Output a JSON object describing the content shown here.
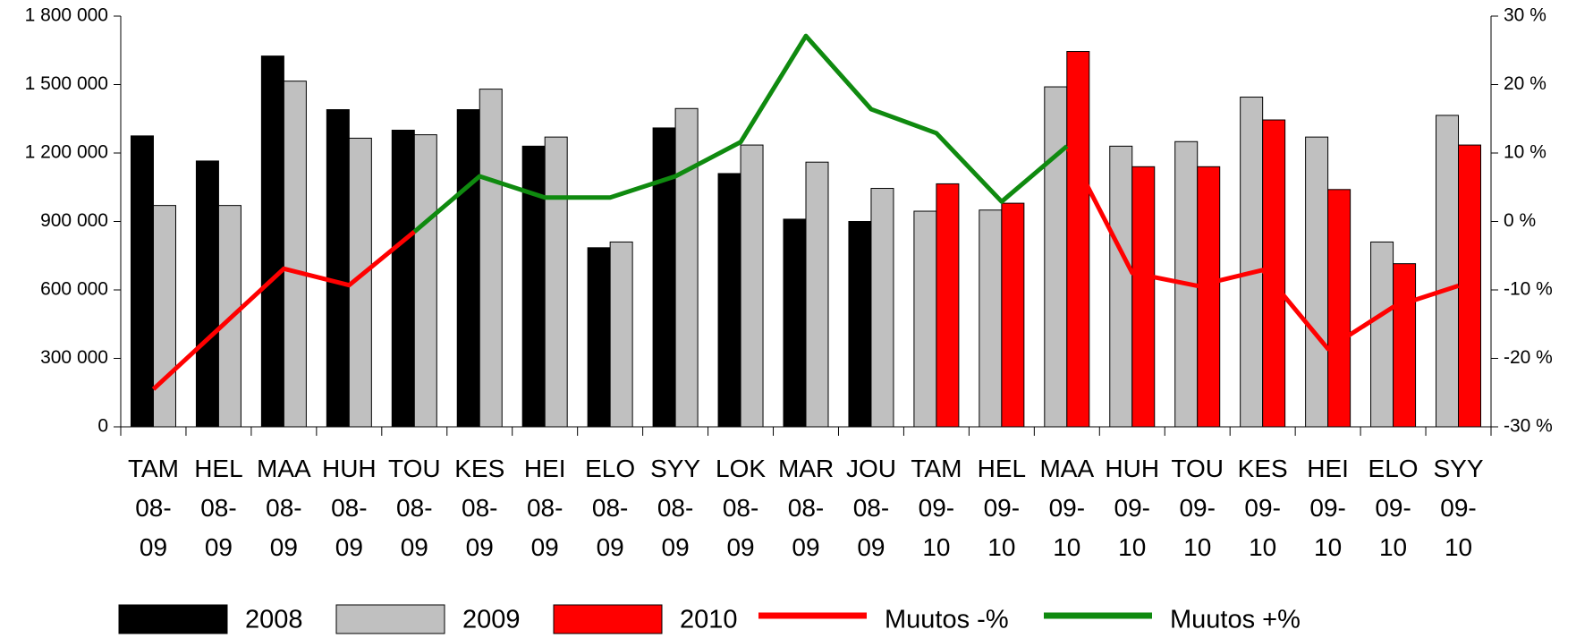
{
  "chart_data": {
    "type": "bar",
    "categories": [
      "TAM 08-09",
      "HEL 08-09",
      "MAA 08-09",
      "HUH 08-09",
      "TOU 08-09",
      "KES 08-09",
      "HEI 08-09",
      "ELO 08-09",
      "SYY 08-09",
      "LOK 08-09",
      "MAR 08-09",
      "JOU 08-09",
      "TAM 09-10",
      "HEL 09-10",
      "MAA 09-10",
      "HUH 09-10",
      "TOU 09-10",
      "KES 09-10",
      "HEI 09-10",
      "ELO 09-10",
      "SYY 09-10"
    ],
    "series": [
      {
        "name": "2008",
        "type": "bar",
        "color": "#000000",
        "values": [
          1275000,
          1165000,
          1625000,
          1390000,
          1300000,
          1390000,
          1230000,
          785000,
          1310000,
          1110000,
          910000,
          900000,
          null,
          null,
          null,
          null,
          null,
          null,
          null,
          null,
          null
        ]
      },
      {
        "name": "2009",
        "type": "bar",
        "color": "#c0c0c0",
        "values": [
          970000,
          970000,
          1515000,
          1265000,
          1280000,
          1480000,
          1270000,
          810000,
          1395000,
          1235000,
          1160000,
          1045000,
          945000,
          950000,
          1490000,
          1230000,
          1250000,
          1445000,
          1270000,
          810000,
          1365000
        ]
      },
      {
        "name": "2010",
        "type": "bar",
        "color": "#ff0000",
        "values": [
          null,
          null,
          null,
          null,
          null,
          null,
          null,
          null,
          null,
          null,
          null,
          null,
          1065000,
          980000,
          1645000,
          1140000,
          1140000,
          1345000,
          1040000,
          715000,
          1235000
        ]
      },
      {
        "name": "Muutos -%",
        "type": "line",
        "axis": "y2",
        "color": "#ff0000",
        "values": [
          -24.5,
          -15.7,
          -6.9,
          -9.3,
          -1.5,
          null,
          null,
          null,
          null,
          null,
          null,
          null,
          null,
          null,
          11,
          -7.5,
          -9.4,
          -7.1,
          -18.6,
          -12.5,
          -9.4
        ]
      },
      {
        "name": "Muutos +%",
        "type": "line",
        "axis": "y2",
        "color": "#0f8a0f",
        "values": [
          null,
          null,
          null,
          null,
          -1.5,
          6.6,
          3.5,
          3.5,
          6.6,
          11.6,
          27.1,
          16.4,
          12.9,
          2.9,
          11,
          null,
          null,
          null,
          null,
          null,
          null
        ]
      }
    ],
    "ylim": [
      0,
      1800000
    ],
    "yticks": [
      0,
      {
        "value": 300000,
        "label": "300 000"
      },
      {
        "value": 600000,
        "label": "600 000"
      },
      {
        "value": 900000,
        "label": "900 000"
      },
      {
        "value": 1200000,
        "label": "1 200 000"
      },
      {
        "value": 1500000,
        "label": "1 500 000"
      },
      {
        "value": 1800000,
        "label": "1 800 000"
      }
    ],
    "y2lim": [
      -30,
      30
    ],
    "y2ticks": [
      {
        "value": -30,
        "label": "-30 %"
      },
      {
        "value": -20,
        "label": "-20 %"
      },
      {
        "value": -10,
        "label": "-10 %"
      },
      {
        "value": 0,
        "label": "0 %"
      },
      {
        "value": 10,
        "label": "10 %"
      },
      {
        "value": 20,
        "label": "20 %"
      },
      {
        "value": 30,
        "label": "30 %"
      }
    ],
    "legend": "bottom"
  }
}
